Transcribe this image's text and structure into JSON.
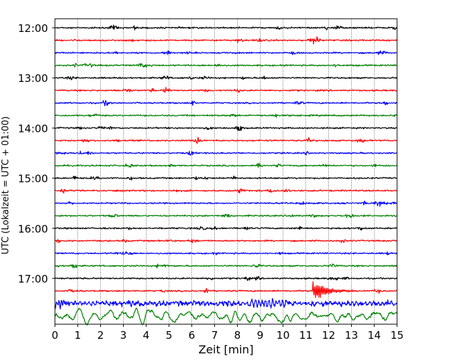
{
  "chart_data": {
    "type": "line",
    "title": "",
    "xlabel": "Zeit  [min]",
    "ylabel": "UTC (Lokalzeit = UTC + 01:00)",
    "xlim": [
      0,
      15
    ],
    "x_ticks": [
      "0",
      "1",
      "2",
      "3",
      "4",
      "5",
      "6",
      "7",
      "8",
      "9",
      "10",
      "11",
      "12",
      "13",
      "14",
      "15"
    ],
    "y_ticks": [
      "12:00",
      "13:00",
      "14:00",
      "15:00",
      "16:00",
      "17:00"
    ],
    "grid": "vertical dotted lines at each minute",
    "line_colors": [
      "#000000",
      "#ff0000",
      "#0000ff",
      "#008000"
    ],
    "traces": {
      "row_interval_minutes": 15,
      "row_count": 24,
      "first_row_time": "12:00",
      "last_row_time": "17:45",
      "events": [
        {
          "row_time": "17:15",
          "start_min": 11.3,
          "end_min": 13.2,
          "color": "#ff0000",
          "description": "large oscillation burst"
        },
        {
          "row_time": "17:30",
          "start_min": 0.0,
          "end_min": 15.0,
          "color": "#0000ff",
          "description": "elevated noise"
        },
        {
          "row_time": "17:45",
          "start_min": 0.0,
          "end_min": 15.0,
          "color": "#008000",
          "description": "large slow waves, dip near 14 min"
        }
      ]
    }
  }
}
